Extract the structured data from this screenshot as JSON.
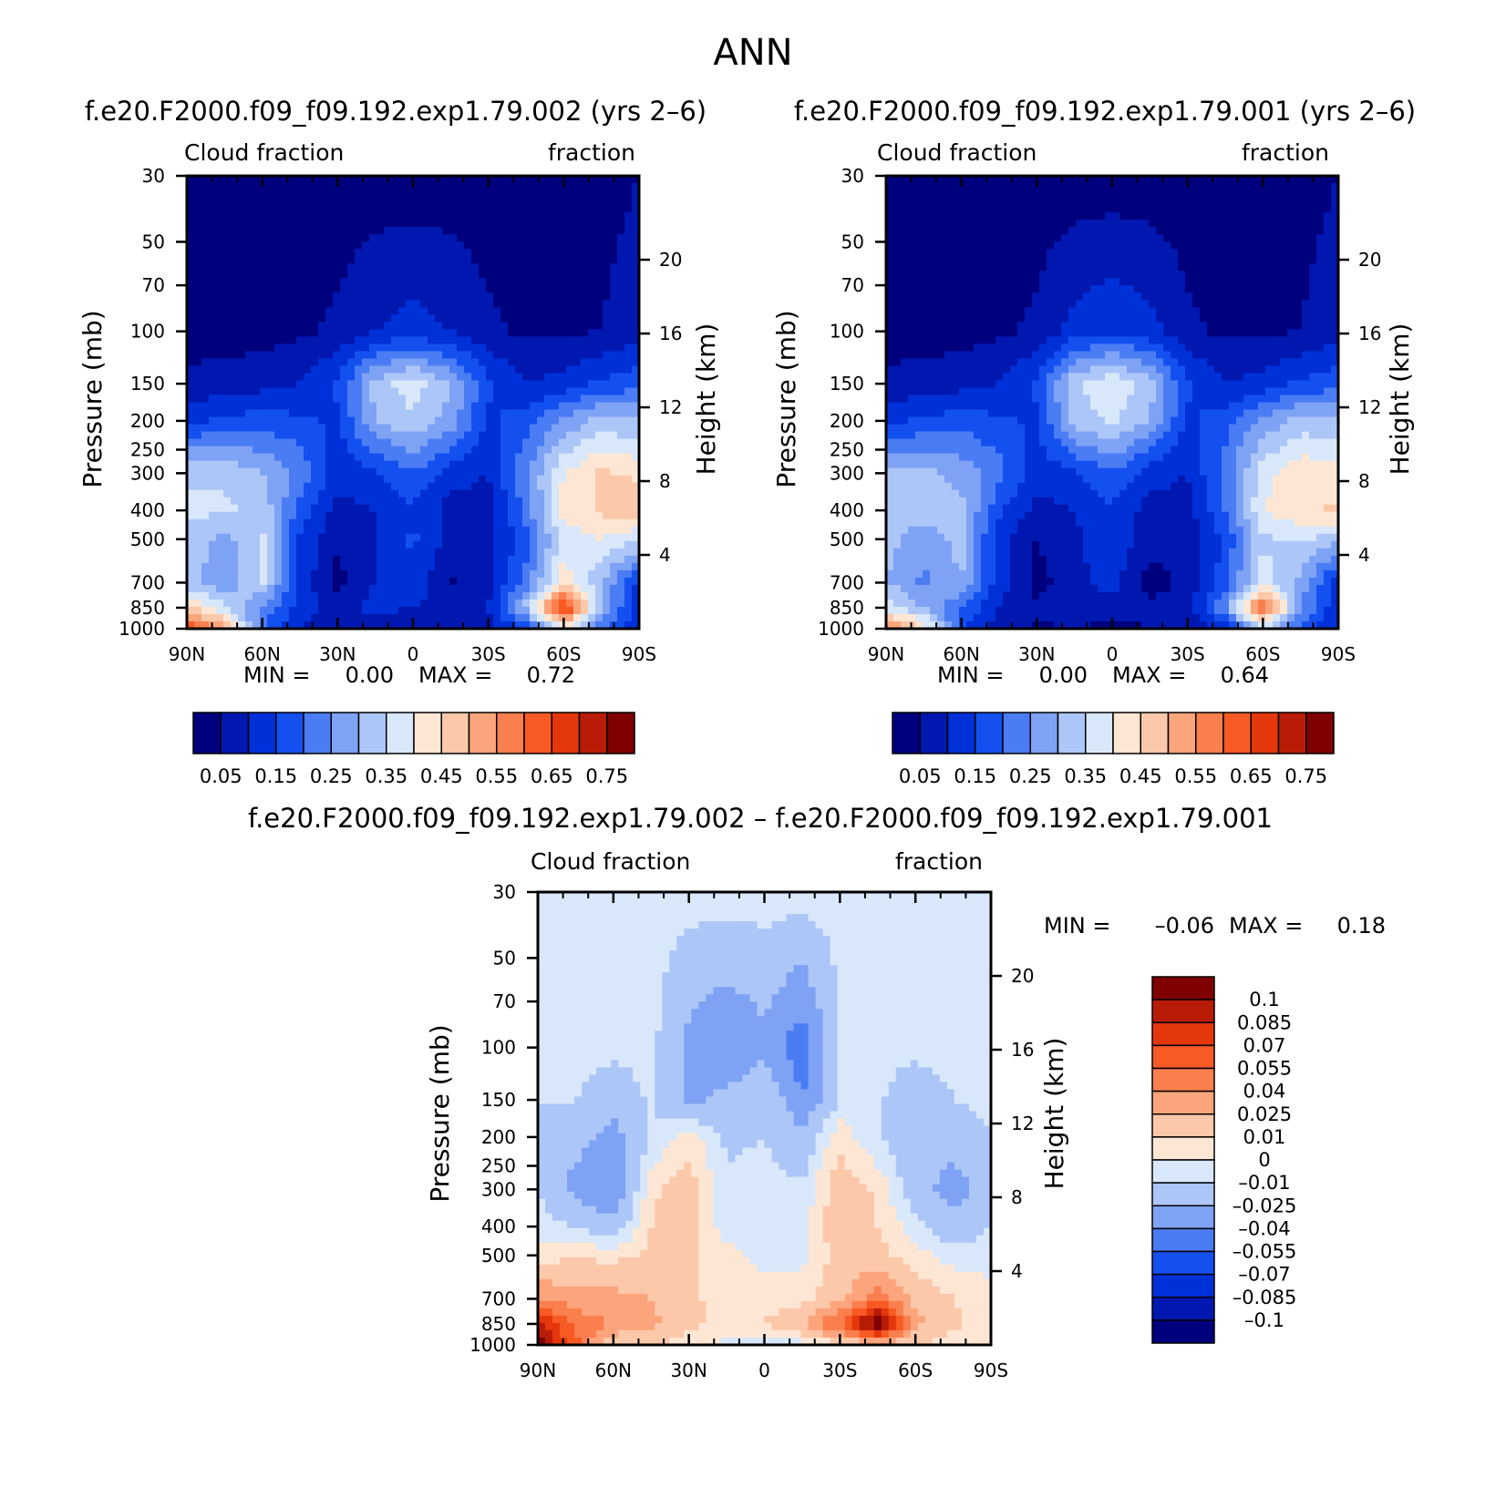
{
  "page_title": "ANN",
  "palettes": {
    "abs": [
      "#00007f",
      "#0018b0",
      "#0030d8",
      "#1450f0",
      "#4a7cf4",
      "#7ea2f4",
      "#adc6f8",
      "#d8e8fa",
      "#fde6d4",
      "#fcc8aa",
      "#fca47c",
      "#fa7f4e",
      "#f85a24",
      "#e4380c",
      "#b81c06",
      "#7f0000"
    ],
    "diff": [
      "#00007f",
      "#0018b0",
      "#0030d8",
      "#1450f0",
      "#4a7cf4",
      "#7ea2f4",
      "#adc6f8",
      "#d8e8fa",
      "#fde6d4",
      "#fcc8aa",
      "#fca47c",
      "#fa7f4e",
      "#f85a24",
      "#e4380c",
      "#b81c06",
      "#7f0000"
    ]
  },
  "chart_data": [
    {
      "type": "heatmap",
      "title": "f.e20.F2000.f09_f09.192.exp1.79.002 (yrs 2–6)",
      "left_label": "Cloud fraction",
      "right_label": "fraction",
      "ylabel": "Pressure (mb)",
      "y2label": "Height (km)",
      "xticks": [
        "90N",
        "60N",
        "30N",
        "0",
        "30S",
        "60S",
        "90S"
      ],
      "pressure_ticks": [
        "30",
        "50",
        "70",
        "100",
        "150",
        "200",
        "250",
        "300",
        "400",
        "500",
        "700",
        "850",
        "1000"
      ],
      "pressure_values": [
        30,
        50,
        70,
        100,
        150,
        200,
        250,
        300,
        400,
        500,
        700,
        850,
        1000
      ],
      "height_ticks": [
        "20",
        "16",
        "12",
        "8",
        "4"
      ],
      "height_values": [
        20,
        16,
        12,
        8,
        4
      ],
      "min_label": "MIN =",
      "min_value": "0.00",
      "max_label": "MAX =",
      "max_value": "0.72",
      "colorbar_labels": [
        "0.05",
        "0.15",
        "0.25",
        "0.35",
        "0.45",
        "0.55",
        "0.65",
        "0.75"
      ],
      "levels": [
        0.05,
        0.1,
        0.15,
        0.2,
        0.25,
        0.3,
        0.35,
        0.4,
        0.45,
        0.5,
        0.55,
        0.6,
        0.65,
        0.7,
        0.75
      ],
      "field": {
        "lat": [
          90,
          75,
          60,
          45,
          30,
          15,
          0,
          -15,
          -30,
          -45,
          -60,
          -75,
          -90
        ],
        "p": [
          30,
          100,
          150,
          200,
          300,
          400,
          500,
          700,
          850,
          1000
        ],
        "values": [
          [
            0.02,
            0.02,
            0.02,
            0.02,
            0.02,
            0.02,
            0.02,
            0.02,
            0.02,
            0.02,
            0.02,
            0.03,
            0.05
          ],
          [
            0.03,
            0.03,
            0.03,
            0.04,
            0.06,
            0.1,
            0.12,
            0.1,
            0.06,
            0.04,
            0.04,
            0.05,
            0.08
          ],
          [
            0.06,
            0.07,
            0.08,
            0.1,
            0.16,
            0.32,
            0.38,
            0.3,
            0.16,
            0.1,
            0.12,
            0.16,
            0.18
          ],
          [
            0.14,
            0.16,
            0.18,
            0.16,
            0.14,
            0.3,
            0.34,
            0.28,
            0.14,
            0.18,
            0.26,
            0.32,
            0.3
          ],
          [
            0.34,
            0.34,
            0.3,
            0.24,
            0.12,
            0.14,
            0.2,
            0.12,
            0.1,
            0.24,
            0.4,
            0.46,
            0.44
          ],
          [
            0.36,
            0.36,
            0.34,
            0.18,
            0.08,
            0.1,
            0.14,
            0.08,
            0.08,
            0.22,
            0.42,
            0.46,
            0.48
          ],
          [
            0.34,
            0.28,
            0.36,
            0.14,
            0.06,
            0.1,
            0.16,
            0.08,
            0.08,
            0.18,
            0.36,
            0.4,
            0.36
          ],
          [
            0.32,
            0.26,
            0.36,
            0.14,
            0.03,
            0.1,
            0.14,
            0.04,
            0.08,
            0.22,
            0.44,
            0.3,
            0.14
          ],
          [
            0.46,
            0.36,
            0.24,
            0.12,
            0.08,
            0.12,
            0.1,
            0.08,
            0.1,
            0.32,
            0.7,
            0.3,
            0.1
          ],
          [
            0.66,
            0.52,
            0.2,
            0.1,
            0.06,
            0.06,
            0.04,
            0.06,
            0.08,
            0.16,
            0.4,
            0.2,
            0.12
          ]
        ]
      }
    },
    {
      "type": "heatmap",
      "title": "f.e20.F2000.f09_f09.192.exp1.79.001 (yrs 2–6)",
      "left_label": "Cloud fraction",
      "right_label": "fraction",
      "ylabel": "Pressure (mb)",
      "y2label": "Height (km)",
      "xticks": [
        "90N",
        "60N",
        "30N",
        "0",
        "30S",
        "60S",
        "90S"
      ],
      "pressure_ticks": [
        "30",
        "50",
        "70",
        "100",
        "150",
        "200",
        "250",
        "300",
        "400",
        "500",
        "700",
        "850",
        "1000"
      ],
      "pressure_values": [
        30,
        50,
        70,
        100,
        150,
        200,
        250,
        300,
        400,
        500,
        700,
        850,
        1000
      ],
      "height_ticks": [
        "20",
        "16",
        "12",
        "8",
        "4"
      ],
      "height_values": [
        20,
        16,
        12,
        8,
        4
      ],
      "min_label": "MIN =",
      "min_value": "0.00",
      "max_label": "MAX =",
      "max_value": "0.64",
      "colorbar_labels": [
        "0.05",
        "0.15",
        "0.25",
        "0.35",
        "0.45",
        "0.55",
        "0.65",
        "0.75"
      ],
      "levels": [
        0.05,
        0.1,
        0.15,
        0.2,
        0.25,
        0.3,
        0.35,
        0.4,
        0.45,
        0.5,
        0.55,
        0.6,
        0.65,
        0.7,
        0.75
      ],
      "field": {
        "lat": [
          90,
          75,
          60,
          45,
          30,
          15,
          0,
          -15,
          -30,
          -45,
          -60,
          -75,
          -90
        ],
        "p": [
          30,
          100,
          150,
          200,
          300,
          400,
          500,
          700,
          850,
          1000
        ],
        "values": [
          [
            0.02,
            0.02,
            0.02,
            0.02,
            0.02,
            0.02,
            0.02,
            0.02,
            0.02,
            0.02,
            0.02,
            0.03,
            0.05
          ],
          [
            0.03,
            0.03,
            0.03,
            0.04,
            0.06,
            0.12,
            0.14,
            0.12,
            0.06,
            0.04,
            0.04,
            0.05,
            0.08
          ],
          [
            0.06,
            0.07,
            0.08,
            0.1,
            0.16,
            0.34,
            0.4,
            0.32,
            0.16,
            0.1,
            0.12,
            0.16,
            0.18
          ],
          [
            0.14,
            0.16,
            0.18,
            0.16,
            0.14,
            0.32,
            0.36,
            0.3,
            0.14,
            0.18,
            0.26,
            0.32,
            0.3
          ],
          [
            0.32,
            0.32,
            0.28,
            0.22,
            0.12,
            0.14,
            0.2,
            0.12,
            0.1,
            0.22,
            0.38,
            0.44,
            0.42
          ],
          [
            0.34,
            0.34,
            0.32,
            0.16,
            0.08,
            0.1,
            0.14,
            0.08,
            0.08,
            0.2,
            0.4,
            0.44,
            0.46
          ],
          [
            0.32,
            0.26,
            0.32,
            0.12,
            0.05,
            0.09,
            0.14,
            0.07,
            0.07,
            0.16,
            0.34,
            0.36,
            0.32
          ],
          [
            0.3,
            0.24,
            0.3,
            0.12,
            0.03,
            0.08,
            0.12,
            0.03,
            0.06,
            0.18,
            0.38,
            0.28,
            0.12
          ],
          [
            0.38,
            0.3,
            0.2,
            0.1,
            0.06,
            0.1,
            0.08,
            0.06,
            0.08,
            0.26,
            0.62,
            0.26,
            0.1
          ],
          [
            0.58,
            0.44,
            0.16,
            0.08,
            0.04,
            0.05,
            0.03,
            0.05,
            0.06,
            0.12,
            0.34,
            0.18,
            0.1
          ]
        ]
      }
    },
    {
      "type": "heatmap",
      "title": "f.e20.F2000.f09_f09.192.exp1.79.002 – f.e20.F2000.f09_f09.192.exp1.79.001",
      "left_label": "Cloud fraction",
      "right_label": "fraction",
      "ylabel": "Pressure (mb)",
      "y2label": "Height (km)",
      "xticks": [
        "90N",
        "60N",
        "30N",
        "0",
        "30S",
        "60S",
        "90S"
      ],
      "pressure_ticks": [
        "30",
        "50",
        "70",
        "100",
        "150",
        "200",
        "250",
        "300",
        "400",
        "500",
        "700",
        "850",
        "1000"
      ],
      "pressure_values": [
        30,
        50,
        70,
        100,
        150,
        200,
        250,
        300,
        400,
        500,
        700,
        850,
        1000
      ],
      "height_ticks": [
        "20",
        "16",
        "12",
        "8",
        "4"
      ],
      "height_values": [
        20,
        16,
        12,
        8,
        4
      ],
      "min_label": "MIN =",
      "min_value": "–0.06",
      "max_label": "MAX =",
      "max_value": "0.18",
      "colorbar_labels": [
        "0.1",
        "0.085",
        "0.07",
        "0.055",
        "0.04",
        "0.025",
        "0.01",
        "0",
        "–0.01",
        "–0.025",
        "–0.04",
        "–0.055",
        "–0.07",
        "–0.085",
        "–0.1"
      ],
      "levels": [
        -0.1,
        -0.085,
        -0.07,
        -0.055,
        -0.04,
        -0.025,
        -0.01,
        0,
        0.01,
        0.025,
        0.04,
        0.055,
        0.07,
        0.085,
        0.1
      ],
      "field": {
        "lat": [
          90,
          75,
          60,
          45,
          30,
          15,
          0,
          -15,
          -30,
          -45,
          -60,
          -75,
          -90
        ],
        "p": [
          30,
          100,
          150,
          200,
          300,
          400,
          500,
          700,
          850,
          1000
        ],
        "values": [
          [
            -0.004,
            -0.004,
            -0.004,
            -0.004,
            -0.004,
            -0.004,
            -0.004,
            -0.004,
            -0.004,
            -0.004,
            -0.004,
            -0.004,
            -0.004
          ],
          [
            -0.006,
            -0.004,
            -0.006,
            -0.006,
            -0.03,
            -0.04,
            -0.03,
            -0.05,
            -0.01,
            -0.006,
            -0.006,
            -0.006,
            -0.004
          ],
          [
            -0.008,
            -0.01,
            -0.02,
            -0.008,
            -0.03,
            -0.02,
            -0.01,
            -0.04,
            -0.008,
            -0.008,
            -0.02,
            -0.01,
            -0.006
          ],
          [
            -0.02,
            -0.02,
            -0.03,
            -0.01,
            0.006,
            -0.012,
            -0.01,
            -0.02,
            0.006,
            -0.01,
            -0.02,
            -0.02,
            -0.01
          ],
          [
            -0.01,
            -0.03,
            -0.04,
            0.008,
            0.016,
            -0.008,
            -0.006,
            -0.008,
            0.018,
            0.008,
            -0.02,
            -0.03,
            -0.02
          ],
          [
            -0.006,
            -0.01,
            -0.02,
            0.01,
            0.016,
            -0.006,
            -0.006,
            -0.004,
            0.02,
            0.01,
            -0.006,
            -0.02,
            -0.01
          ],
          [
            0.004,
            0.008,
            0.006,
            0.012,
            0.012,
            0.004,
            -0.004,
            -0.004,
            0.016,
            0.014,
            0.004,
            -0.004,
            -0.004
          ],
          [
            0.04,
            0.03,
            0.03,
            0.025,
            0.012,
            0.006,
            0.006,
            0.006,
            0.02,
            0.05,
            0.02,
            0.01,
            0.004
          ],
          [
            0.09,
            0.05,
            0.04,
            0.03,
            0.012,
            0.008,
            0.01,
            0.02,
            0.06,
            0.12,
            0.03,
            0.012,
            0.006
          ],
          [
            0.11,
            0.06,
            0.01,
            0.01,
            0.006,
            -0.004,
            -0.006,
            -0.004,
            0.006,
            0.02,
            0.01,
            0.004,
            0.002
          ]
        ]
      }
    }
  ]
}
